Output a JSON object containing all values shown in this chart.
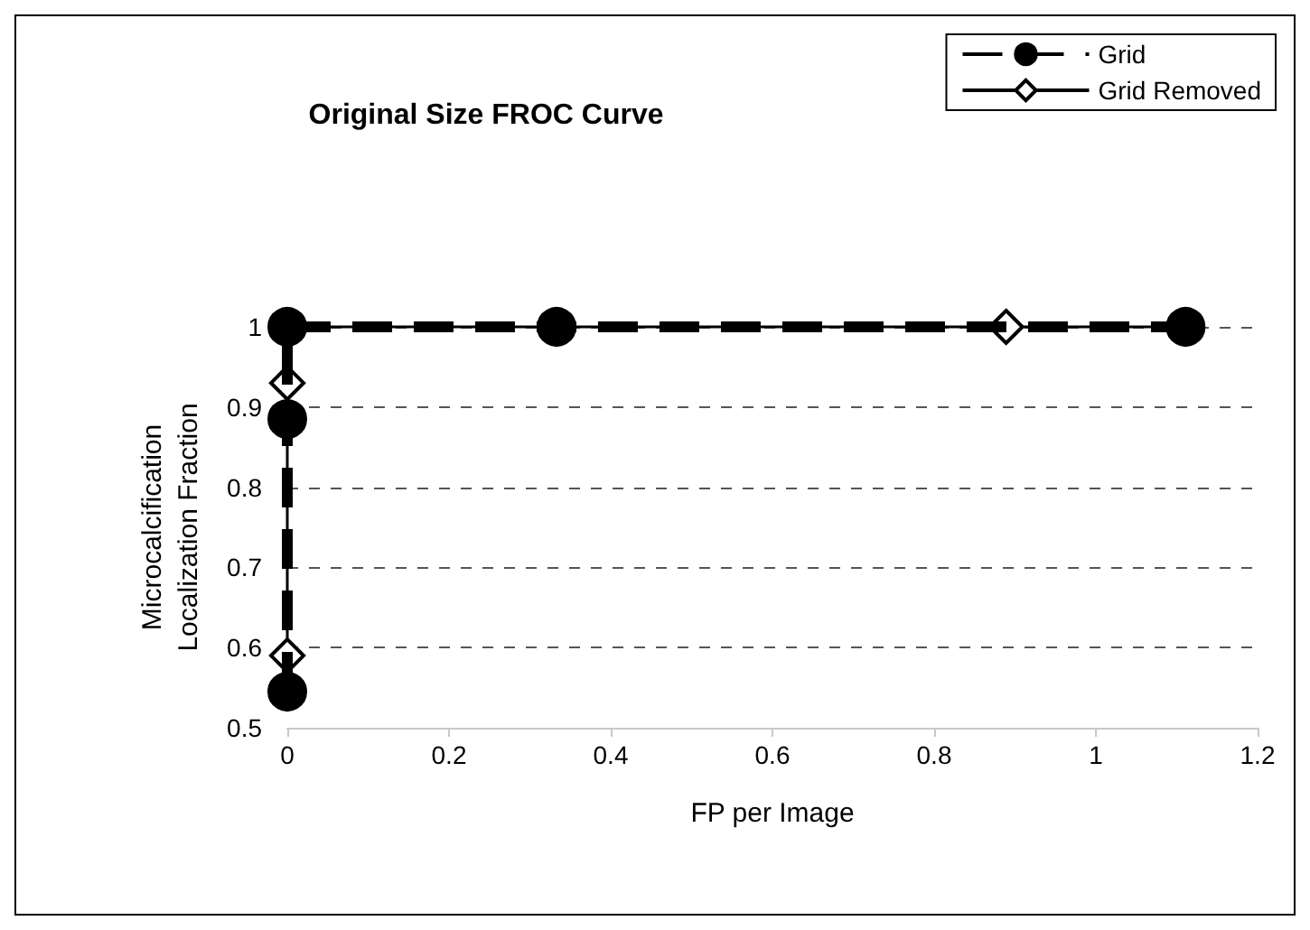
{
  "chart_data": {
    "type": "line",
    "title": "Original Size FROC Curve",
    "xlabel": "FP per Image",
    "ylabel": "Microcalcification\nLocalization Fraction",
    "series": [
      {
        "name": "Grid",
        "color": "#000000",
        "x": [
          0,
          0,
          0,
          0.333,
          1.111
        ],
        "values": [
          0.545,
          0.885,
          1,
          1,
          1
        ],
        "marker": "circle",
        "line_style": "dashed"
      },
      {
        "name": "Grid Removed",
        "color": "#000000",
        "x": [
          0,
          0,
          0,
          0.889,
          1.111
        ],
        "values": [
          0.59,
          0.93,
          1,
          1,
          1
        ],
        "marker": "diamond",
        "line_style": "solid"
      }
    ],
    "xlim": [
      0,
      1.2
    ],
    "xticks": [
      0,
      0.2,
      0.4,
      0.6,
      0.8,
      1,
      1.2
    ],
    "ylim": [
      0.5,
      1
    ],
    "yticks": [
      0.5,
      0.6,
      0.7,
      0.8,
      0.9,
      1
    ],
    "grid": "y",
    "legend": "top right"
  }
}
